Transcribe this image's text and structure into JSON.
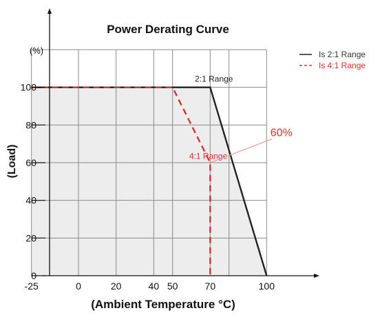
{
  "chart_data": {
    "type": "line",
    "title": "Power Derating Curve",
    "xlabel": "(Ambient Temperature °C)",
    "ylabel": "(Load)",
    "y_unit": "(%)",
    "x_ticks": [
      -25,
      0,
      20,
      40,
      50,
      70,
      100
    ],
    "y_ticks": [
      0,
      20,
      40,
      60,
      80,
      100
    ],
    "xlim": [
      -30,
      120
    ],
    "ylim": [
      0,
      120
    ],
    "x_grid": [
      -25,
      0,
      20,
      40,
      50,
      70,
      80,
      100
    ],
    "grid": true,
    "legend_position": "top-right",
    "series": [
      {
        "name": "Is 2:1 Range",
        "color": "#222222",
        "style": "solid",
        "points": [
          [
            -25,
            100
          ],
          [
            70,
            100
          ],
          [
            100,
            0
          ]
        ]
      },
      {
        "name": "Is 4:1 Range",
        "color": "#d9302c",
        "style": "dashed",
        "points": [
          [
            -25,
            100
          ],
          [
            50,
            100
          ],
          [
            70,
            60
          ],
          [
            70,
            0
          ]
        ]
      }
    ],
    "annotations": [
      {
        "text": "2:1 Range",
        "x": 72,
        "y": 103,
        "color": "#222222"
      },
      {
        "text": "4:1 Range",
        "x": 69,
        "y": 62,
        "color": "#d9302c"
      },
      {
        "text": "60%",
        "x": 102,
        "y": 74,
        "color": "#d9302c",
        "pointer_to": [
          70,
          60
        ]
      }
    ]
  }
}
